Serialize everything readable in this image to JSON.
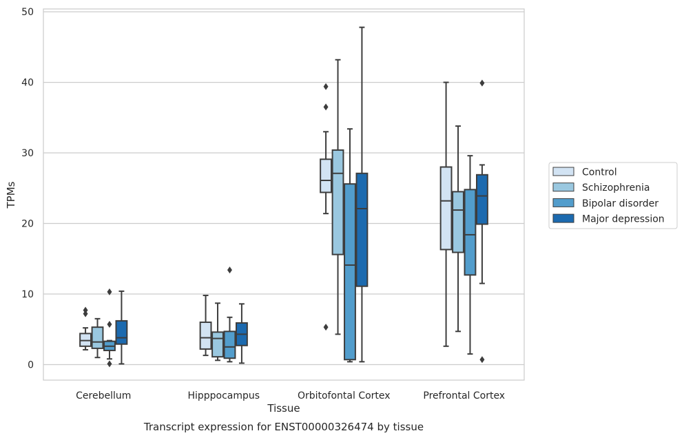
{
  "chart_data": {
    "type": "boxplot",
    "title": "",
    "caption": "Transcript expression for ENST00000326474 by tissue",
    "xlabel": "Tissue",
    "ylabel": "TPMs",
    "ylim": [
      -2.2,
      50.4
    ],
    "yticks": [
      0,
      10,
      20,
      30,
      40,
      50
    ],
    "grid": "horizontal",
    "legend_position": "right",
    "categories": [
      "Cerebellum",
      "Hipppocampus",
      "Orbitofontal Cortex",
      "Prefrontal Cortex"
    ],
    "series": [
      {
        "name": "Control",
        "color": "#d2e3f3",
        "boxes": [
          {
            "low": 2.1,
            "q1": 2.6,
            "median": 3.4,
            "q3": 4.4,
            "high": 5.2,
            "outliers": [
              7.2,
              7.7
            ]
          },
          {
            "low": 1.3,
            "q1": 2.2,
            "median": 3.8,
            "q3": 6.0,
            "high": 9.8,
            "outliers": []
          },
          {
            "low": 21.4,
            "q1": 24.4,
            "median": 26.1,
            "q3": 29.1,
            "high": 33.0,
            "outliers": [
              5.3,
              36.5,
              39.4
            ]
          },
          {
            "low": 2.6,
            "q1": 16.3,
            "median": 23.2,
            "q3": 28.0,
            "high": 40.0,
            "outliers": []
          }
        ]
      },
      {
        "name": "Schizophrenia",
        "color": "#9ac8e0",
        "boxes": [
          {
            "low": 1.0,
            "q1": 2.3,
            "median": 3.2,
            "q3": 5.3,
            "high": 6.5,
            "outliers": []
          },
          {
            "low": 0.6,
            "q1": 1.1,
            "median": 3.7,
            "q3": 4.6,
            "high": 8.7,
            "outliers": []
          },
          {
            "low": 4.3,
            "q1": 15.6,
            "median": 27.1,
            "q3": 30.4,
            "high": 43.2,
            "outliers": []
          },
          {
            "low": 4.7,
            "q1": 15.9,
            "median": 21.9,
            "q3": 24.5,
            "high": 33.8,
            "outliers": []
          }
        ]
      },
      {
        "name": "Bipolar disorder",
        "color": "#529dcc",
        "boxes": [
          {
            "low": 0.8,
            "q1": 2.0,
            "median": 2.6,
            "q3": 3.3,
            "high": 3.4,
            "outliers": [
              0.1,
              5.7,
              10.3
            ]
          },
          {
            "low": 0.4,
            "q1": 0.9,
            "median": 2.5,
            "q3": 4.7,
            "high": 6.7,
            "outliers": [
              13.4
            ]
          },
          {
            "low": 0.4,
            "q1": 0.7,
            "median": 14.1,
            "q3": 25.6,
            "high": 33.4,
            "outliers": []
          },
          {
            "low": 1.5,
            "q1": 12.7,
            "median": 18.4,
            "q3": 24.8,
            "high": 29.6,
            "outliers": []
          }
        ]
      },
      {
        "name": "Major depression",
        "color": "#1c6aaf",
        "boxes": [
          {
            "low": 0.1,
            "q1": 2.9,
            "median": 3.8,
            "q3": 6.2,
            "high": 10.4,
            "outliers": []
          },
          {
            "low": 0.2,
            "q1": 2.7,
            "median": 4.3,
            "q3": 5.9,
            "high": 8.6,
            "outliers": []
          },
          {
            "low": 0.4,
            "q1": 11.1,
            "median": 22.1,
            "q3": 27.1,
            "high": 47.8,
            "outliers": []
          },
          {
            "low": 11.5,
            "q1": 19.9,
            "median": 23.9,
            "q3": 26.9,
            "high": 28.3,
            "outliers": [
              0.7,
              39.9
            ]
          }
        ]
      }
    ]
  }
}
